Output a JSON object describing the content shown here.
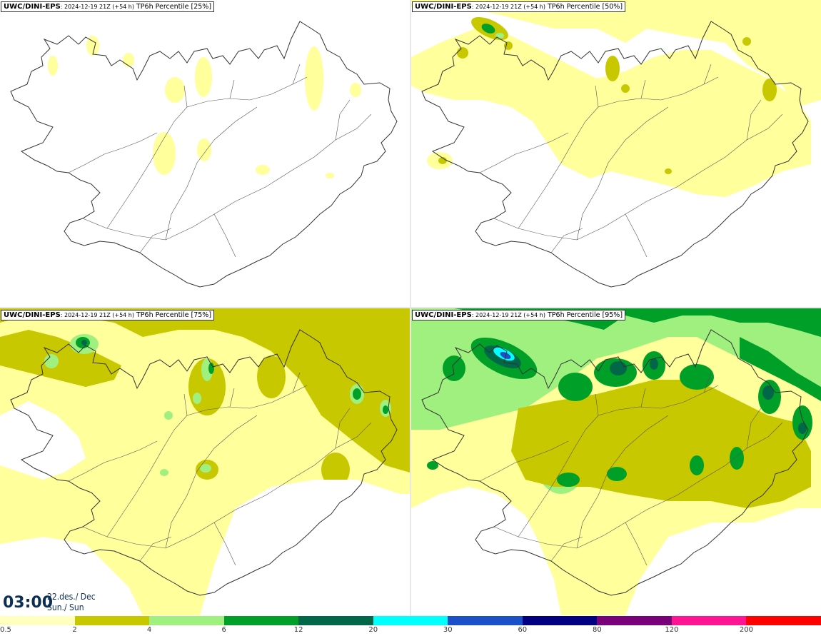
{
  "panels": [
    {
      "source": "UWC/DINI-EPS",
      "run": ": 2024-12-19 21Z (+54 h)",
      "variable": " TP6h Percentile [25%]"
    },
    {
      "source": "UWC/DINI-EPS",
      "run": ": 2024-12-19 21Z (+54 h)",
      "variable": " TP6h Percentile [50%]"
    },
    {
      "source": "UWC/DINI-EPS",
      "run": ": 2024-12-19 21Z (+54 h)",
      "variable": " TP6h Percentile [75%]"
    },
    {
      "source": "UWC/DINI-EPS",
      "run": ": 2024-12-19 21Z (+54 h)",
      "variable": " TP6h Percentile [95%]"
    }
  ],
  "valid_time": {
    "time": "03:00",
    "date_line1": "22.des./ Dec",
    "date_line2": "Sun./ Sun"
  },
  "legend": {
    "labels": [
      "0.5",
      "2",
      "4",
      "6",
      "12",
      "20",
      "30",
      "60",
      "80",
      "120",
      "200"
    ],
    "colors": [
      "#ffffc0",
      "#c8c800",
      "#a0f080",
      "#00a028",
      "#006848",
      "#00ffff",
      "#1c50c8",
      "#000080",
      "#780078",
      "#ff1493",
      "#ff0000"
    ]
  },
  "map_colors": {
    "c1": "#ffff9c",
    "c2": "#c8c800",
    "c3": "#a0f080",
    "c4": "#00a028",
    "c5": "#006848",
    "c6": "#00ffff",
    "c7": "#1c50c8",
    "coast": "#333333"
  }
}
